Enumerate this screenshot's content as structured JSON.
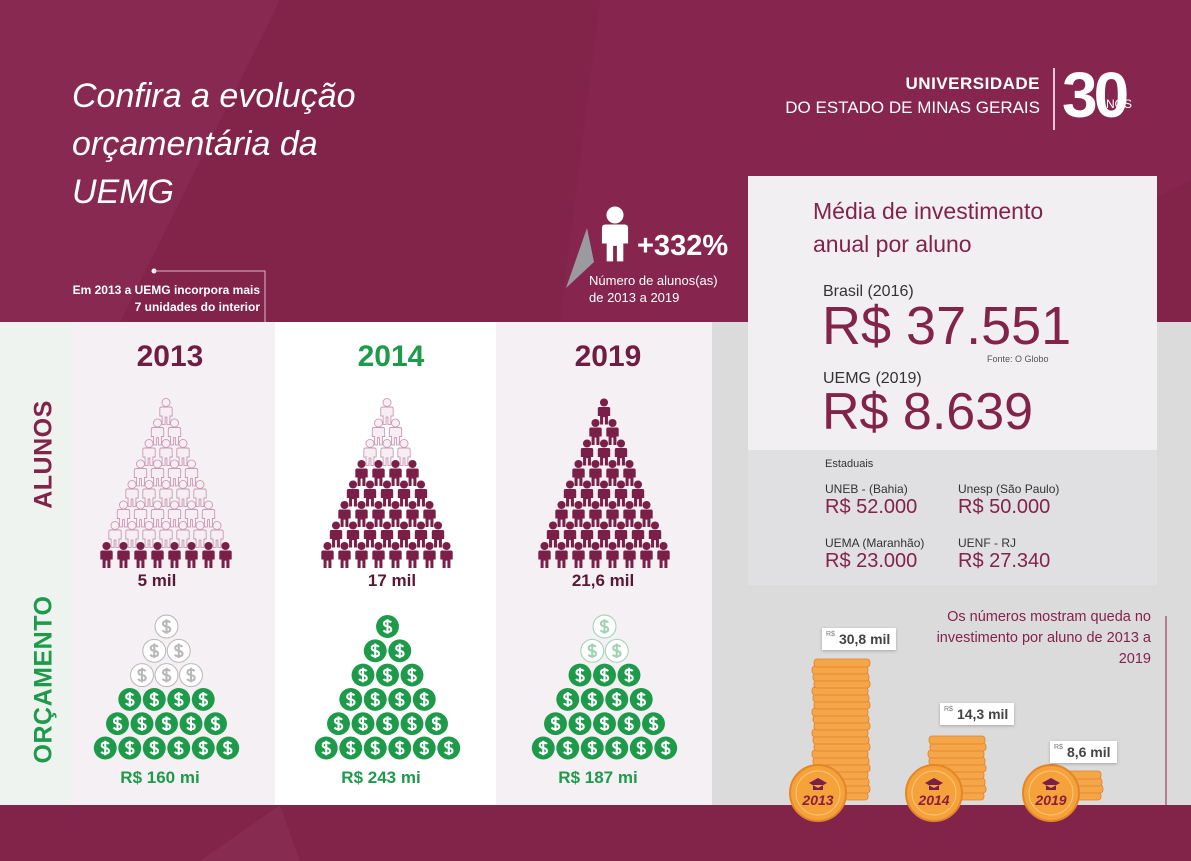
{
  "title_lines": [
    "Confira a evolução",
    "orçamentária da",
    "UEMG"
  ],
  "logo": {
    "line1": "UNIVERSIDADE",
    "line2": "DO ESTADO DE MINAS GERAIS",
    "number": "30",
    "suffix": "ANOS"
  },
  "note_2013": {
    "line1": "Em 2013 a UEMG incorpora mais",
    "line2": "7 unidades do interior"
  },
  "growth": {
    "value": "+332%",
    "caption_line1": "Número de alunos(as)",
    "caption_line2": "de 2013 a 2019"
  },
  "rows": [
    "ALUNOS",
    "ORÇAMENTO"
  ],
  "years": [
    {
      "year": "2013",
      "students": "5 mil",
      "budget": "R$ 160 mi"
    },
    {
      "year": "2014",
      "students": "17 mil",
      "budget": "R$ 243 mi"
    },
    {
      "year": "2019",
      "students": "21,6 mil",
      "budget": "R$ 187 mi"
    }
  ],
  "investment": {
    "title": "Média de investimento anual por aluno",
    "brasil_label": "Brasil (2016)",
    "brasil_value": "R$ 37.551",
    "source": "Fonte: O Globo",
    "uemg_label": "UEMG (2019)",
    "uemg_value": "R$ 8.639",
    "state_heading": "Estaduais",
    "states": [
      {
        "name": "UNEB - (Bahia)",
        "value": "R$ 52.000"
      },
      {
        "name": "Unesp (São Paulo)",
        "value": "R$ 50.000"
      },
      {
        "name": "UEMA (Maranhão)",
        "value": "R$ 23.000"
      },
      {
        "name": "UENF - RJ",
        "value": "R$ 27.340"
      }
    ]
  },
  "coins": {
    "note": "Os números mostram queda no investimento por aluno de 2013 a 2019",
    "stacks": [
      {
        "year": "2013",
        "currency": "R$",
        "value": "30,8 mil"
      },
      {
        "year": "2014",
        "currency": "R$",
        "value": "14,3 mil"
      },
      {
        "year": "2019",
        "currency": "R$",
        "value": "8,6 mil"
      }
    ]
  }
}
